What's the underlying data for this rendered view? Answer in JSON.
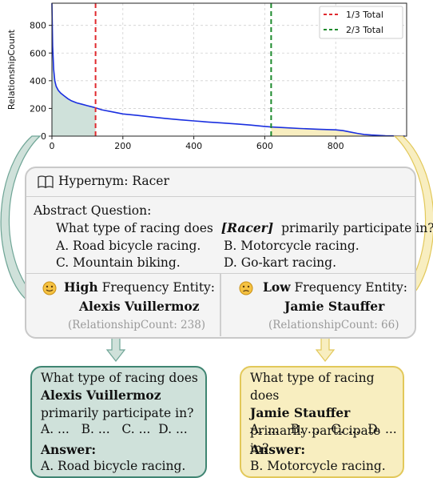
{
  "chart_data": {
    "type": "area",
    "title": "",
    "xlabel": "",
    "ylabel": "RelationshipCount",
    "xlim": [
      0,
      1000
    ],
    "ylim": [
      0,
      960
    ],
    "xticks": [
      "0",
      "200",
      "400",
      "600",
      "800"
    ],
    "yticks": [
      "0",
      "200",
      "400",
      "600",
      "800"
    ],
    "grid": true,
    "legend_position": "top-right",
    "series": [
      {
        "x": [
          0,
          2,
          5,
          8,
          12,
          18,
          25,
          35,
          45,
          55,
          70,
          85,
          100,
          115,
          123,
          140,
          170,
          200,
          240,
          280,
          320,
          360,
          400,
          440,
          480,
          520,
          560,
          600,
          618,
          650,
          700,
          750,
          800,
          820,
          840,
          860,
          880,
          900,
          920,
          940,
          960,
          980,
          995
        ],
        "values": [
          960,
          650,
          480,
          400,
          360,
          330,
          310,
          290,
          270,
          255,
          240,
          230,
          220,
          210,
          205,
          190,
          175,
          160,
          150,
          138,
          128,
          118,
          110,
          102,
          95,
          88,
          80,
          70,
          66,
          62,
          55,
          50,
          45,
          40,
          30,
          20,
          12,
          8,
          5,
          3,
          2,
          1,
          0
        ]
      }
    ],
    "vlines": [
      {
        "x": 123,
        "label": "1/3 Total",
        "color": "#e0292e"
      },
      {
        "x": 618,
        "label": "2/3 Total",
        "color": "#1c8a2c"
      }
    ],
    "fills": [
      {
        "from": 0,
        "to": 123,
        "color": "#cfe1da"
      },
      {
        "from": 618,
        "to": 995,
        "color": "#f8eec0"
      }
    ],
    "line_color": "#1a2fe0"
  },
  "hypernym": {
    "label": "Hypernym: Racer"
  },
  "question": {
    "title": "Abstract Question:",
    "prefix": "What type of racing does",
    "entity": "[Racer]",
    "suffix": "primarily participate in?",
    "options": [
      "A. Road bicycle racing.",
      "B. Motorcycle racing.",
      "C. Mountain biking.",
      "D. Go-kart racing."
    ]
  },
  "high": {
    "strong": "High",
    "rest": "Frequency Entity:",
    "name": "Alexis Vuillermoz",
    "count": "(RelationshipCount: 238)",
    "face_color": "#f5c242"
  },
  "low": {
    "strong": "Low",
    "rest": "Frequency Entity:",
    "name": "Jamie Stauffer",
    "count": "(RelationshipCount: 66)",
    "face_color": "#f5c242"
  },
  "answer_left": {
    "q_start": "What type of racing does",
    "entity": "Alexis Vuillermoz",
    "q_end": "primarily participate in?",
    "options_short": "A. ...   B. ...   C. ...  D. ...",
    "answer_label": "Answer:",
    "answer": "A. Road bicycle racing."
  },
  "answer_right": {
    "q_start": "What type of racing does",
    "entity": "Jamie Stauffer",
    "q_end": "primarily participate in?",
    "options_short": "A. ...   B. ...   C. ...  D. ...",
    "answer_label": "Answer:",
    "answer": "B. Motorcycle racing."
  },
  "colors": {
    "teal": "#cfe1da",
    "teal_border": "#3f8572",
    "yellow": "#f8eec0",
    "yellow_border": "#e2c85a"
  }
}
